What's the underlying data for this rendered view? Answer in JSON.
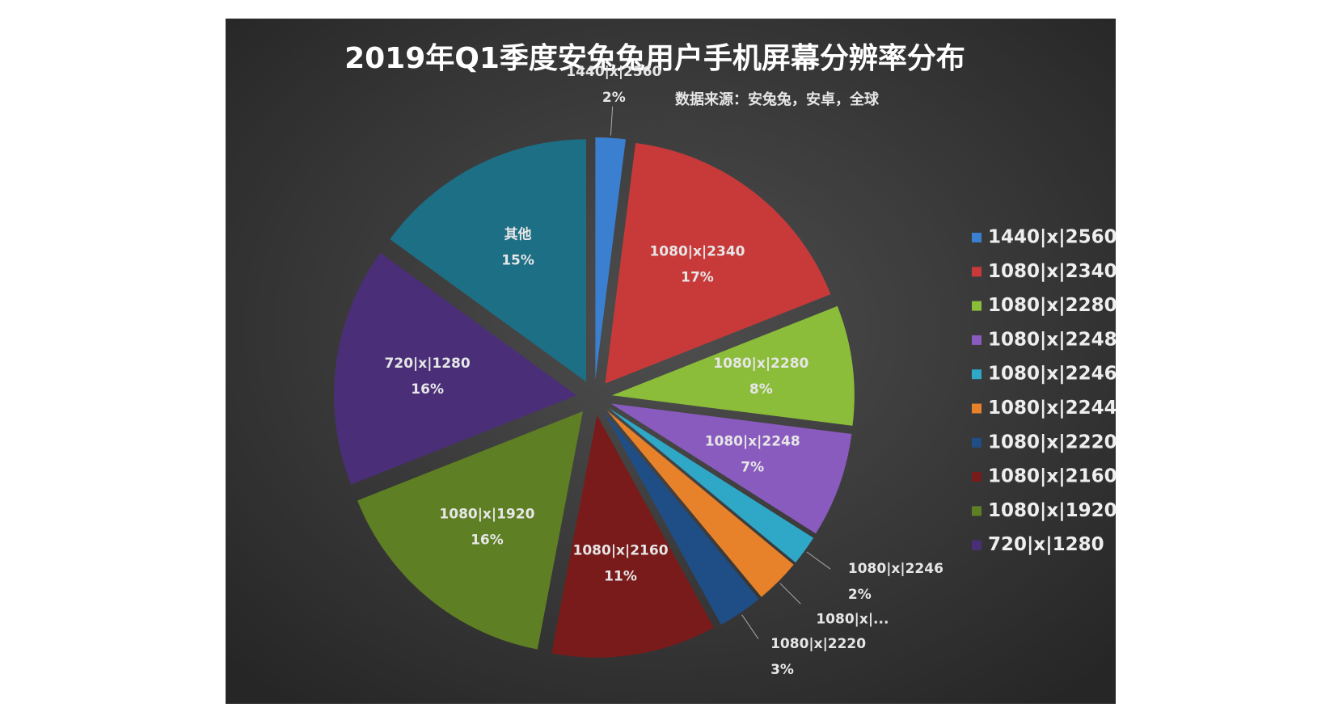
{
  "chart_data": {
    "type": "pie",
    "title": "2019年Q1季度安兔兔用户手机屏幕分辨率分布",
    "subtitle": "数据来源：安兔兔，安卓，全球",
    "legend": "right",
    "slices": [
      {
        "name": "1440|x|2560",
        "label": "1440|x|2560",
        "value": 2,
        "value_label": "2%",
        "color": "#3a7fd0",
        "in_legend": true
      },
      {
        "name": "1080|x|2340",
        "label": "1080|x|2340",
        "value": 17,
        "value_label": "17%",
        "color": "#c83a3a",
        "in_legend": true
      },
      {
        "name": "1080|x|2280",
        "label": "1080|x|2280",
        "value": 8,
        "value_label": "8%",
        "color": "#8bbd3a",
        "in_legend": true
      },
      {
        "name": "1080|x|2248",
        "label": "1080|x|2248",
        "value": 7,
        "value_label": "7%",
        "color": "#8a5bbf",
        "in_legend": true
      },
      {
        "name": "1080|x|2246",
        "label": "1080|x|2246",
        "value": 2,
        "value_label": "2%",
        "color": "#2fa8c8",
        "in_legend": true
      },
      {
        "name": "1080|x|2244",
        "label": "1080|x|...",
        "value": 3,
        "value_label": null,
        "color": "#e8822a",
        "in_legend": true
      },
      {
        "name": "1080|x|2220",
        "label": "1080|x|2220",
        "value": 3,
        "value_label": "3%",
        "color": "#1f4e86",
        "in_legend": true
      },
      {
        "name": "1080|x|2160",
        "label": "1080|x|2160",
        "value": 11,
        "value_label": "11%",
        "color": "#7a1b1b",
        "in_legend": true
      },
      {
        "name": "1080|x|1920",
        "label": "1080|x|1920",
        "value": 16,
        "value_label": "16%",
        "color": "#5e7f23",
        "in_legend": true
      },
      {
        "name": "720|x|1280",
        "label": "720|x|1280",
        "value": 16,
        "value_label": "16%",
        "color": "#4a2f78",
        "in_legend": true
      },
      {
        "name": "其他",
        "label": "其他",
        "value": 15,
        "value_label": "15%",
        "color": "#1d6f86",
        "in_legend": false
      }
    ]
  }
}
